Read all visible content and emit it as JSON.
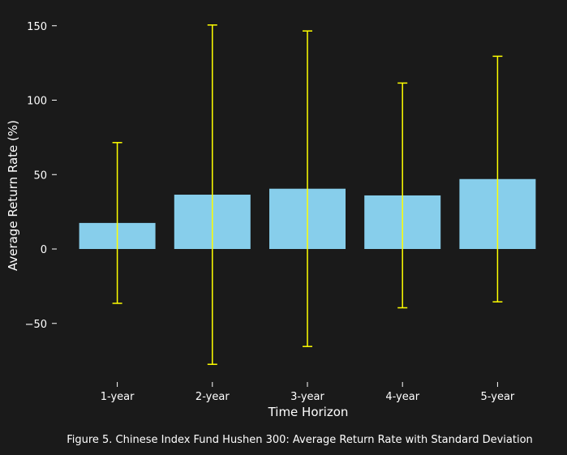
{
  "chart_data": {
    "type": "bar",
    "categories": [
      "1-year",
      "2-year",
      "3-year",
      "4-year",
      "5-year"
    ],
    "values": [
      17.5,
      36.5,
      40.5,
      36,
      47
    ],
    "error": [
      54,
      114,
      106,
      75.5,
      82.5
    ],
    "xlabel": "Time Horizon",
    "ylabel": "Average Return Rate (%)",
    "ylim": [
      -87,
      160
    ],
    "yticks": [
      150,
      100,
      50,
      0,
      -50
    ],
    "ytick_labels": [
      "150",
      "100",
      "50",
      "0",
      "−50"
    ],
    "grid": false,
    "bar_color": "#87ceeb",
    "error_color": "#ffff00",
    "background": "#1a1a1a",
    "caption": "Figure 5. Chinese Index Fund Hushen 300: Average Return Rate with Standard Deviation"
  }
}
